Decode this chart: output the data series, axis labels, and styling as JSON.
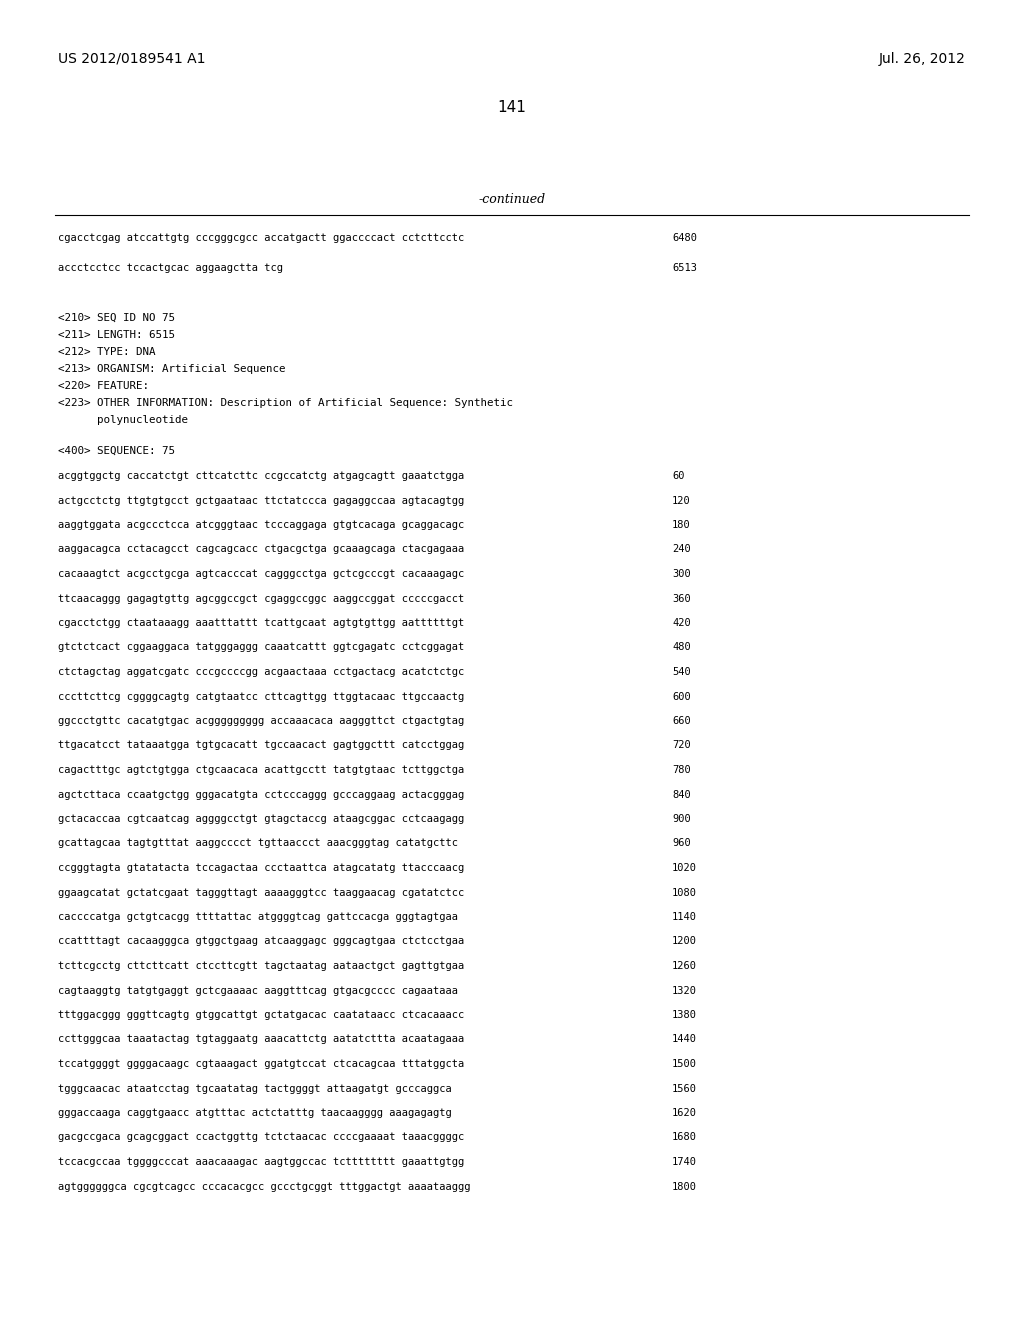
{
  "header_left": "US 2012/0189541 A1",
  "header_right": "Jul. 26, 2012",
  "page_number": "141",
  "continued_label": "-continued",
  "background_color": "#ffffff",
  "text_color": "#000000",
  "continuation_lines": [
    [
      "cgacctcgag atccattgtg cccgggcgcc accatgactt ggaccccact cctcttcctc",
      "6480"
    ],
    [
      "accctcctcc tccactgcac aggaagctta tcg",
      "6513"
    ]
  ],
  "seq_info": [
    "<210> SEQ ID NO 75",
    "<211> LENGTH: 6515",
    "<212> TYPE: DNA",
    "<213> ORGANISM: Artificial Sequence",
    "<220> FEATURE:",
    "<223> OTHER INFORMATION: Description of Artificial Sequence: Synthetic",
    "      polynucleotide"
  ],
  "seq_label": "<400> SEQUENCE: 75",
  "sequence_lines": [
    [
      "acggtggctg caccatctgt cttcatcttc ccgccatctg atgagcagtt gaaatctgga",
      "60"
    ],
    [
      "actgcctctg ttgtgtgcct gctgaataac ttctatccca gagaggccaa agtacagtgg",
      "120"
    ],
    [
      "aaggtggata acgccctcca atcgggtaac tcccaggaga gtgtcacaga gcaggacagc",
      "180"
    ],
    [
      "aaggacagca cctacagcct cagcagcacc ctgacgctga gcaaagcaga ctacgagaaa",
      "240"
    ],
    [
      "cacaaagtct acgcctgcga agtcacccat cagggcctga gctcgcccgt cacaaagagc",
      "300"
    ],
    [
      "ttcaacaggg gagagtgttg agcggccgct cgaggccggc aaggccggat cccccgacct",
      "360"
    ],
    [
      "cgacctctgg ctaataaagg aaatttattt tcattgcaat agtgtgttgg aattttttgt",
      "420"
    ],
    [
      "gtctctcact cggaaggaca tatgggaggg caaatcattt ggtcgagatc cctcggagat",
      "480"
    ],
    [
      "ctctagctag aggatcgatc cccgccccgg acgaactaaa cctgactacg acatctctgc",
      "540"
    ],
    [
      "cccttcttcg cggggcagtg catgtaatcc cttcagttgg ttggtacaac ttgccaactg",
      "600"
    ],
    [
      "ggccctgttc cacatgtgac acggggggggg accaaacaca aagggttct ctgactgtag",
      "660"
    ],
    [
      "ttgacatcct tataaatgga tgtgcacatt tgccaacact gagtggcttt catcctggag",
      "720"
    ],
    [
      "cagactttgc agtctgtgga ctgcaacaca acattgcctt tatgtgtaac tcttggctga",
      "780"
    ],
    [
      "agctcttaca ccaatgctgg gggacatgta cctcccaggg gcccaggaag actacgggag",
      "840"
    ],
    [
      "gctacaccaa cgtcaatcag aggggcctgt gtagctaccg ataagcggac cctcaagagg",
      "900"
    ],
    [
      "gcattagcaa tagtgtttat aaggcccct tgttaaccct aaacgggtag catatgcttc",
      "960"
    ],
    [
      "ccgggtagta gtatatacta tccagactaa ccctaattca atagcatatg ttacccaacg",
      "1020"
    ],
    [
      "ggaagcatat gctatcgaat tagggttagt aaaagggtcc taaggaacag cgatatctcc",
      "1080"
    ],
    [
      "caccccatga gctgtcacgg ttttattac atggggtcag gattccacga gggtagtgaa",
      "1140"
    ],
    [
      "ccattttagt cacaagggca gtggctgaag atcaaggagc gggcagtgaa ctctcctgaa",
      "1200"
    ],
    [
      "tcttcgcctg cttcttcatt ctccttcgtt tagctaatag aataactgct gagttgtgaa",
      "1260"
    ],
    [
      "cagtaaggtg tatgtgaggt gctcgaaaac aaggtttcag gtgacgcccc cagaataaa",
      "1320"
    ],
    [
      "tttggacggg gggttcagtg gtggcattgt gctatgacac caatataacc ctcacaaacc",
      "1380"
    ],
    [
      "ccttgggcaa taaatactag tgtaggaatg aaacattctg aatatcttta acaatagaaa",
      "1440"
    ],
    [
      "tccatggggt ggggacaagc cgtaaagact ggatgtccat ctcacagcaa tttatggcta",
      "1500"
    ],
    [
      "tgggcaacac ataatcctag tgcaatatag tactggggt attaagatgt gcccaggca",
      "1560"
    ],
    [
      "gggaccaaga caggtgaacc atgtttac actctatttg taacaagggg aaagagagtg",
      "1620"
    ],
    [
      "gacgccgaca gcagcggact ccactggttg tctctaacac ccccgaaaat taaacggggc",
      "1680"
    ],
    [
      "tccacgccaa tggggcccat aaacaaagac aagtggccac tctttttttt gaaattgtgg",
      "1740"
    ],
    [
      "agtggggggca cgcgtcagcc cccacacgcc gccctgcggt tttggactgt aaaataaggg",
      "1800"
    ]
  ]
}
